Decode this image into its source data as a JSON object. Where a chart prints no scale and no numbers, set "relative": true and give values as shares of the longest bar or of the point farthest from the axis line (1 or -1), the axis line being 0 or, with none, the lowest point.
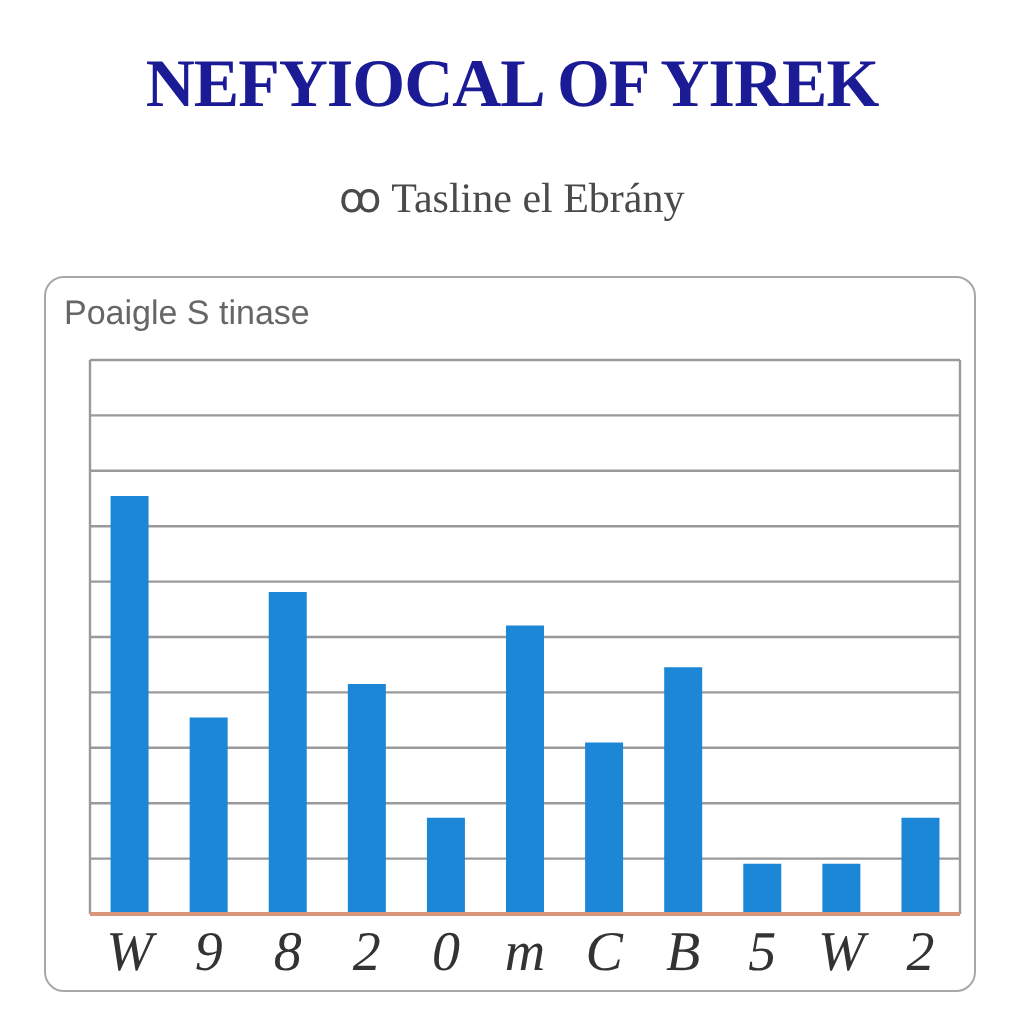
{
  "chart_data": {
    "type": "bar",
    "title": "NEFYIOCAL OF YIREK",
    "subtitle": "ꝏ  Tasline el Ebrány",
    "annotations": [
      "Poaigle S tinase"
    ],
    "categories": [
      "W",
      "9",
      "8",
      "2",
      "0",
      "m",
      "C",
      "B",
      "5",
      "W",
      "2"
    ],
    "values": [
      1,
      0.47,
      0.77,
      0.55,
      0.23,
      0.69,
      0.41,
      0.59,
      0.12,
      0.12,
      0.23
    ],
    "relative": true,
    "color": "#1c87d6",
    "grid": true
  }
}
